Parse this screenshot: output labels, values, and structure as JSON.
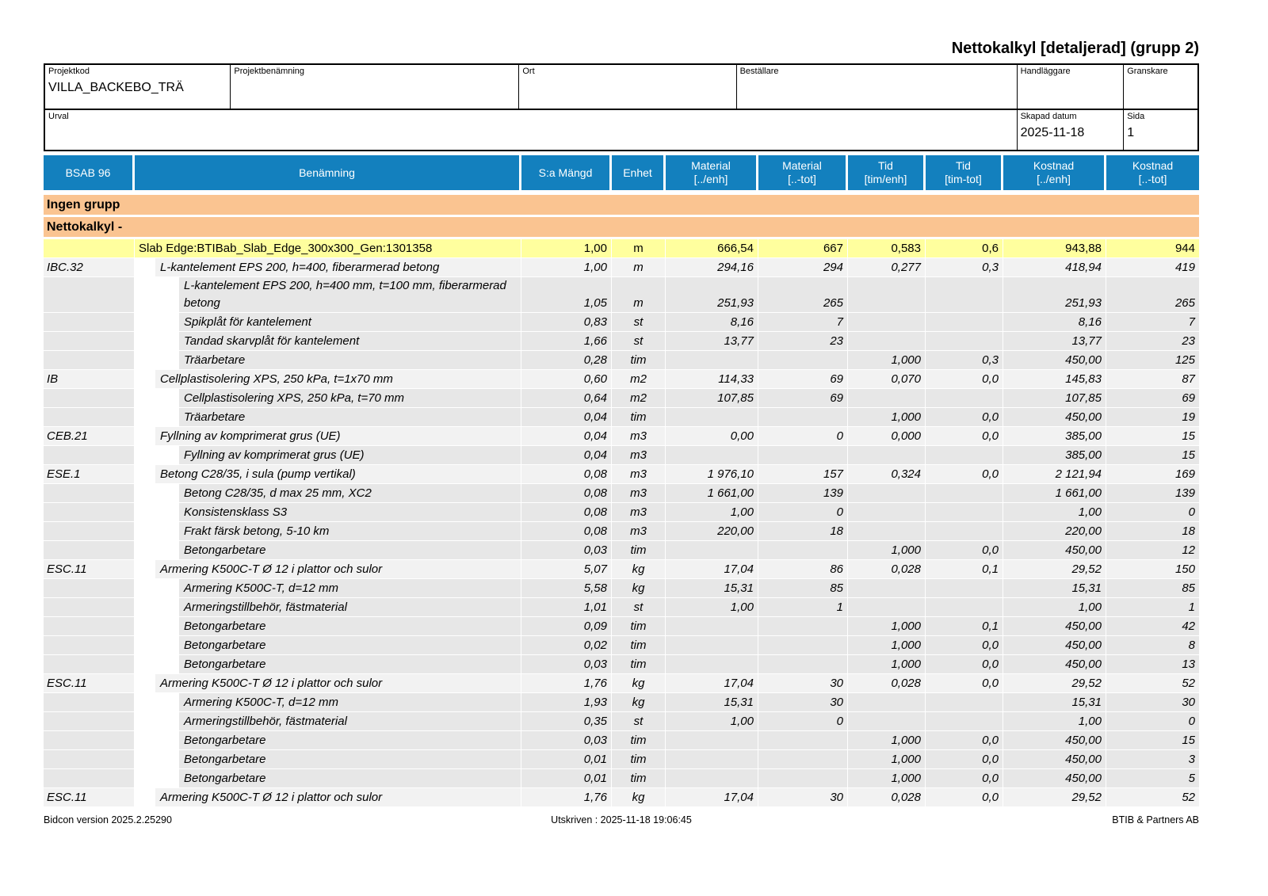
{
  "title": "Nettokalkyl [detaljerad] (grupp 2)",
  "colors": {
    "header_bg": "#1380BE",
    "group_bg": "#FAC491",
    "phase_bg": "#FFFF9E",
    "level1_bg": "#F2F2F2",
    "level2_bg": "#E7E7E7"
  },
  "form": {
    "projektkod_label": "Projektkod",
    "projektkod_value": "VILLA_BACKEBO_TRÄ",
    "projektbenamning_label": "Projektbenämning",
    "projektbenamning_value": "",
    "ort_label": "Ort",
    "ort_value": "",
    "bestallare_label": "Beställare",
    "bestallare_value": "",
    "handlaggare_label": "Handläggare",
    "handlaggare_value": "",
    "granskare_label": "Granskare",
    "granskare_value": "",
    "urval_label": "Urval",
    "urval_value": "",
    "skapad_datum_label": "Skapad datum",
    "skapad_datum_value": "2025-11-18",
    "sida_label": "Sida",
    "sida_value": "1"
  },
  "table": {
    "headers": [
      "BSAB 96",
      "Benämning",
      "S:a Mängd",
      "Enhet",
      "Material\n[../enh]",
      "Material\n[..-tot]",
      "Tid\n[tim/enh]",
      "Tid\n[tim-tot]",
      "Kostnad\n[../enh]",
      "Kostnad\n[..-tot]"
    ],
    "groups": [
      "Ingen grupp",
      "Nettokalkyl -"
    ],
    "rows": [
      {
        "level": "phase",
        "bsab": "",
        "name": "Slab Edge:BTIBab_Slab_Edge_300x300_Gen:1301358",
        "qty": "1,00",
        "unit": "m",
        "mat_enh": "666,54",
        "mat_tot": "667",
        "tid_enh": "0,583",
        "tid_tot": "0,6",
        "kost_enh": "943,88",
        "kost_tot": "944"
      },
      {
        "level": "1",
        "bsab": "IBC.32",
        "name": "L-kantelement EPS 200, h=400, fiberarmerad betong",
        "qty": "1,00",
        "unit": "m",
        "mat_enh": "294,16",
        "mat_tot": "294",
        "tid_enh": "0,277",
        "tid_tot": "0,3",
        "kost_enh": "418,94",
        "kost_tot": "419"
      },
      {
        "level": "2",
        "bsab": "",
        "name": "L-kantelement EPS 200, h=400 mm, t=100 mm, fiberarmerad betong",
        "qty": "1,05",
        "unit": "m",
        "mat_enh": "251,93",
        "mat_tot": "265",
        "tid_enh": "",
        "tid_tot": "",
        "kost_enh": "251,93",
        "kost_tot": "265"
      },
      {
        "level": "2",
        "bsab": "",
        "name": "Spikplåt för kantelement",
        "qty": "0,83",
        "unit": "st",
        "mat_enh": "8,16",
        "mat_tot": "7",
        "tid_enh": "",
        "tid_tot": "",
        "kost_enh": "8,16",
        "kost_tot": "7"
      },
      {
        "level": "2",
        "bsab": "",
        "name": "Tandad skarvplåt för kantelement",
        "qty": "1,66",
        "unit": "st",
        "mat_enh": "13,77",
        "mat_tot": "23",
        "tid_enh": "",
        "tid_tot": "",
        "kost_enh": "13,77",
        "kost_tot": "23"
      },
      {
        "level": "2",
        "bsab": "",
        "name": "Träarbetare",
        "qty": "0,28",
        "unit": "tim",
        "mat_enh": "",
        "mat_tot": "",
        "tid_enh": "1,000",
        "tid_tot": "0,3",
        "kost_enh": "450,00",
        "kost_tot": "125"
      },
      {
        "level": "1",
        "bsab": "IB",
        "name": "Cellplastisolering XPS, 250 kPa, t=1x70 mm",
        "qty": "0,60",
        "unit": "m2",
        "mat_enh": "114,33",
        "mat_tot": "69",
        "tid_enh": "0,070",
        "tid_tot": "0,0",
        "kost_enh": "145,83",
        "kost_tot": "87"
      },
      {
        "level": "2",
        "bsab": "",
        "name": "Cellplastisolering XPS, 250 kPa, t=70 mm",
        "qty": "0,64",
        "unit": "m2",
        "mat_enh": "107,85",
        "mat_tot": "69",
        "tid_enh": "",
        "tid_tot": "",
        "kost_enh": "107,85",
        "kost_tot": "69"
      },
      {
        "level": "2",
        "bsab": "",
        "name": "Träarbetare",
        "qty": "0,04",
        "unit": "tim",
        "mat_enh": "",
        "mat_tot": "",
        "tid_enh": "1,000",
        "tid_tot": "0,0",
        "kost_enh": "450,00",
        "kost_tot": "19"
      },
      {
        "level": "1",
        "bsab": "CEB.21",
        "name": "Fyllning av komprimerat grus (UE)",
        "qty": "0,04",
        "unit": "m3",
        "mat_enh": "0,00",
        "mat_tot": "0",
        "tid_enh": "0,000",
        "tid_tot": "0,0",
        "kost_enh": "385,00",
        "kost_tot": "15"
      },
      {
        "level": "2",
        "bsab": "",
        "name": "Fyllning av komprimerat grus (UE)",
        "qty": "0,04",
        "unit": "m3",
        "mat_enh": "",
        "mat_tot": "",
        "tid_enh": "",
        "tid_tot": "",
        "kost_enh": "385,00",
        "kost_tot": "15"
      },
      {
        "level": "1",
        "bsab": "ESE.1",
        "name": "Betong C28/35, i sula (pump vertikal)",
        "qty": "0,08",
        "unit": "m3",
        "mat_enh": "1 976,10",
        "mat_tot": "157",
        "tid_enh": "0,324",
        "tid_tot": "0,0",
        "kost_enh": "2 121,94",
        "kost_tot": "169"
      },
      {
        "level": "2",
        "bsab": "",
        "name": "Betong C28/35, d max 25 mm, XC2",
        "qty": "0,08",
        "unit": "m3",
        "mat_enh": "1 661,00",
        "mat_tot": "139",
        "tid_enh": "",
        "tid_tot": "",
        "kost_enh": "1 661,00",
        "kost_tot": "139"
      },
      {
        "level": "2",
        "bsab": "",
        "name": "Konsistensklass S3",
        "qty": "0,08",
        "unit": "m3",
        "mat_enh": "1,00",
        "mat_tot": "0",
        "tid_enh": "",
        "tid_tot": "",
        "kost_enh": "1,00",
        "kost_tot": "0"
      },
      {
        "level": "2",
        "bsab": "",
        "name": "Frakt färsk betong, 5-10 km",
        "qty": "0,08",
        "unit": "m3",
        "mat_enh": "220,00",
        "mat_tot": "18",
        "tid_enh": "",
        "tid_tot": "",
        "kost_enh": "220,00",
        "kost_tot": "18"
      },
      {
        "level": "2",
        "bsab": "",
        "name": "Betongarbetare",
        "qty": "0,03",
        "unit": "tim",
        "mat_enh": "",
        "mat_tot": "",
        "tid_enh": "1,000",
        "tid_tot": "0,0",
        "kost_enh": "450,00",
        "kost_tot": "12"
      },
      {
        "level": "1",
        "bsab": "ESC.11",
        "name": "Armering K500C-T Ø 12 i plattor och sulor",
        "qty": "5,07",
        "unit": "kg",
        "mat_enh": "17,04",
        "mat_tot": "86",
        "tid_enh": "0,028",
        "tid_tot": "0,1",
        "kost_enh": "29,52",
        "kost_tot": "150"
      },
      {
        "level": "2",
        "bsab": "",
        "name": "Armering K500C-T, d=12 mm",
        "qty": "5,58",
        "unit": "kg",
        "mat_enh": "15,31",
        "mat_tot": "85",
        "tid_enh": "",
        "tid_tot": "",
        "kost_enh": "15,31",
        "kost_tot": "85"
      },
      {
        "level": "2",
        "bsab": "",
        "name": "Armeringstillbehör, fästmaterial",
        "qty": "1,01",
        "unit": "st",
        "mat_enh": "1,00",
        "mat_tot": "1",
        "tid_enh": "",
        "tid_tot": "",
        "kost_enh": "1,00",
        "kost_tot": "1"
      },
      {
        "level": "2",
        "bsab": "",
        "name": "Betongarbetare",
        "qty": "0,09",
        "unit": "tim",
        "mat_enh": "",
        "mat_tot": "",
        "tid_enh": "1,000",
        "tid_tot": "0,1",
        "kost_enh": "450,00",
        "kost_tot": "42"
      },
      {
        "level": "2",
        "bsab": "",
        "name": "Betongarbetare",
        "qty": "0,02",
        "unit": "tim",
        "mat_enh": "",
        "mat_tot": "",
        "tid_enh": "1,000",
        "tid_tot": "0,0",
        "kost_enh": "450,00",
        "kost_tot": "8"
      },
      {
        "level": "2",
        "bsab": "",
        "name": "Betongarbetare",
        "qty": "0,03",
        "unit": "tim",
        "mat_enh": "",
        "mat_tot": "",
        "tid_enh": "1,000",
        "tid_tot": "0,0",
        "kost_enh": "450,00",
        "kost_tot": "13"
      },
      {
        "level": "1",
        "bsab": "ESC.11",
        "name": "Armering K500C-T Ø 12 i plattor och sulor",
        "qty": "1,76",
        "unit": "kg",
        "mat_enh": "17,04",
        "mat_tot": "30",
        "tid_enh": "0,028",
        "tid_tot": "0,0",
        "kost_enh": "29,52",
        "kost_tot": "52"
      },
      {
        "level": "2",
        "bsab": "",
        "name": "Armering K500C-T, d=12 mm",
        "qty": "1,93",
        "unit": "kg",
        "mat_enh": "15,31",
        "mat_tot": "30",
        "tid_enh": "",
        "tid_tot": "",
        "kost_enh": "15,31",
        "kost_tot": "30"
      },
      {
        "level": "2",
        "bsab": "",
        "name": "Armeringstillbehör, fästmaterial",
        "qty": "0,35",
        "unit": "st",
        "mat_enh": "1,00",
        "mat_tot": "0",
        "tid_enh": "",
        "tid_tot": "",
        "kost_enh": "1,00",
        "kost_tot": "0"
      },
      {
        "level": "2",
        "bsab": "",
        "name": "Betongarbetare",
        "qty": "0,03",
        "unit": "tim",
        "mat_enh": "",
        "mat_tot": "",
        "tid_enh": "1,000",
        "tid_tot": "0,0",
        "kost_enh": "450,00",
        "kost_tot": "15"
      },
      {
        "level": "2",
        "bsab": "",
        "name": "Betongarbetare",
        "qty": "0,01",
        "unit": "tim",
        "mat_enh": "",
        "mat_tot": "",
        "tid_enh": "1,000",
        "tid_tot": "0,0",
        "kost_enh": "450,00",
        "kost_tot": "3"
      },
      {
        "level": "2",
        "bsab": "",
        "name": "Betongarbetare",
        "qty": "0,01",
        "unit": "tim",
        "mat_enh": "",
        "mat_tot": "",
        "tid_enh": "1,000",
        "tid_tot": "0,0",
        "kost_enh": "450,00",
        "kost_tot": "5"
      },
      {
        "level": "1",
        "bsab": "ESC.11",
        "name": "Armering K500C-T Ø 12 i plattor och sulor",
        "qty": "1,76",
        "unit": "kg",
        "mat_enh": "17,04",
        "mat_tot": "30",
        "tid_enh": "0,028",
        "tid_tot": "0,0",
        "kost_enh": "29,52",
        "kost_tot": "52"
      }
    ]
  },
  "footer": {
    "left": "Bidcon version 2025.2.25290",
    "center": "Utskriven :  2025-11-18 19:06:45",
    "right": "BTIB & Partners AB"
  }
}
